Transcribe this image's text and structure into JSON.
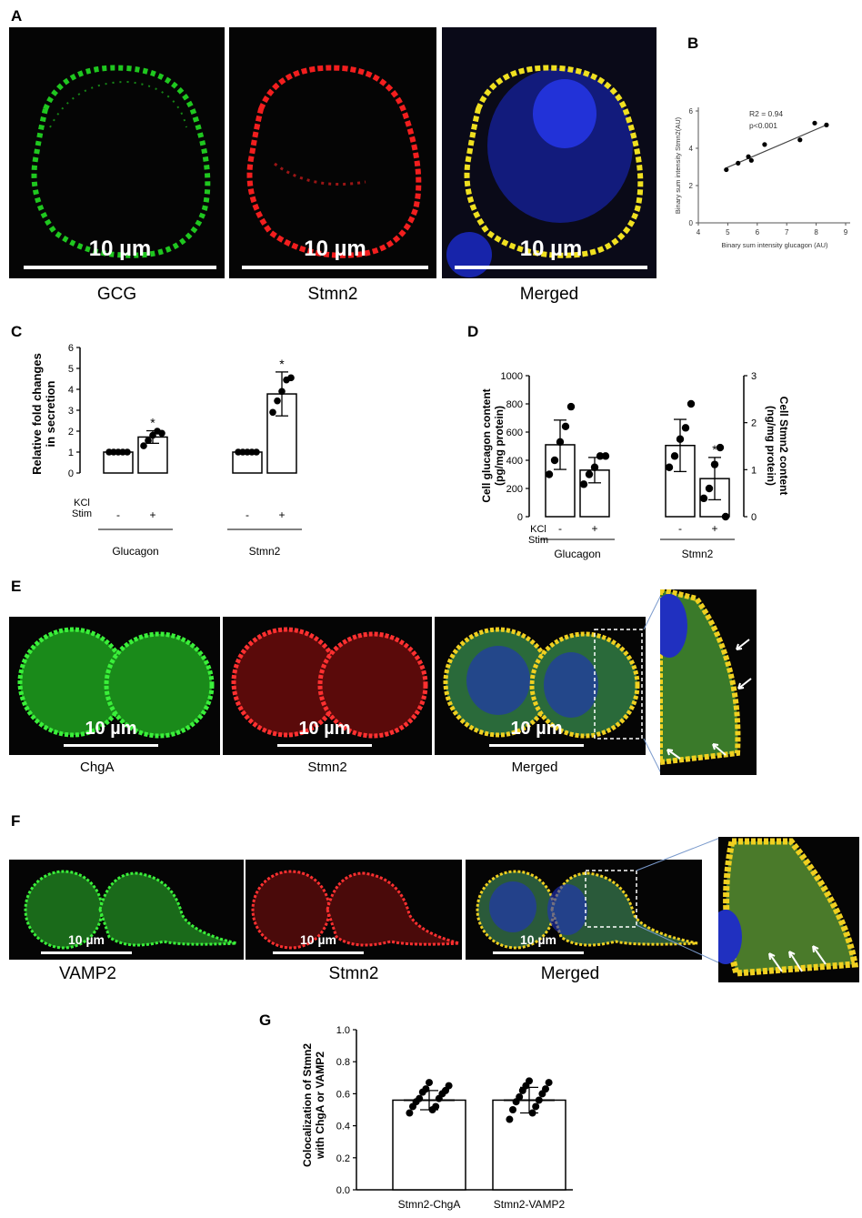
{
  "panel_letters": {
    "a": "A",
    "b": "B",
    "c": "C",
    "d": "D",
    "e": "E",
    "f": "F",
    "g": "G"
  },
  "panel_a": {
    "captions": [
      "GCG",
      "Stmn2",
      "Merged"
    ],
    "scale_label": "10 µm",
    "colors": {
      "gcg": "#22dd22",
      "stmn2": "#ff2020",
      "merged_bg": "#1a2ad0",
      "yellow": "#f0e020"
    }
  },
  "panel_e": {
    "captions": [
      "ChgA",
      "Stmn2",
      "Merged"
    ],
    "scale_label": "10 µm"
  },
  "panel_f": {
    "captions": [
      "VAMP2",
      "Stmn2",
      "Merged"
    ],
    "scale_label": "10 µm"
  },
  "panel_b": {
    "annotation_r2": "R2 = 0.94",
    "annotation_p": "p<0.001",
    "chart_data": {
      "type": "scatter",
      "xlabel": "Binary sum intensity glucagon (AU)",
      "ylabel": "Binary sum intensity Stmn2(AU)",
      "xlim": [
        4,
        9
      ],
      "ylim": [
        0,
        6
      ],
      "xticks": [
        4,
        5,
        6,
        7,
        8,
        9
      ],
      "yticks": [
        0,
        2,
        4,
        6
      ],
      "points": [
        [
          4.95,
          2.85
        ],
        [
          5.35,
          3.2
        ],
        [
          5.7,
          3.55
        ],
        [
          5.8,
          3.35
        ],
        [
          6.25,
          4.2
        ],
        [
          7.45,
          4.45
        ],
        [
          7.95,
          5.35
        ],
        [
          8.35,
          5.25
        ]
      ],
      "fit": [
        [
          4.95,
          2.95
        ],
        [
          8.35,
          5.25
        ]
      ]
    }
  },
  "panel_c": {
    "chart_data": {
      "type": "bar",
      "ylabel": "Relative fold changes in secretion",
      "ylim": [
        0,
        6
      ],
      "yticks": [
        0,
        1,
        2,
        3,
        4,
        5,
        6
      ],
      "row_label": "KCl Stim",
      "groups": [
        "Glucagon",
        "Stmn2"
      ],
      "conditions": [
        "-",
        "+"
      ],
      "values": [
        1.0,
        1.72,
        1.0,
        3.78
      ],
      "errors": [
        0,
        0.3,
        0,
        1.05
      ],
      "stars": [
        "",
        "*",
        "",
        "*"
      ],
      "points": [
        [
          1,
          1,
          1,
          1,
          1
        ],
        [
          1.3,
          1.55,
          1.8,
          2.0,
          1.9
        ],
        [
          1,
          1,
          1,
          1,
          1
        ],
        [
          2.9,
          3.45,
          3.9,
          4.45,
          4.55
        ]
      ]
    }
  },
  "panel_d": {
    "chart_data": {
      "type": "bar",
      "ylabel_left": "Cell glucagon content (pg/mg protein)",
      "ylabel_right": "Cell Stmn2 content (ng/mg protein)",
      "ylim_left": [
        0,
        1000
      ],
      "yticks_left": [
        0,
        200,
        400,
        600,
        800,
        1000
      ],
      "ylim_right": [
        0,
        3
      ],
      "yticks_right": [
        0,
        1,
        2,
        3
      ],
      "row_label": "KCl Stim",
      "groups": [
        "Glucagon",
        "Stmn2"
      ],
      "conditions": [
        "-",
        "+"
      ],
      "values_left": [
        510,
        330,
        505,
        270
      ],
      "errors_left": [
        175,
        90,
        185,
        150
      ],
      "stars": [
        "",
        "",
        "",
        "*"
      ],
      "points_left": [
        [
          300,
          400,
          530,
          640,
          780
        ],
        [
          230,
          300,
          350,
          430,
          430
        ],
        [
          350,
          430,
          550,
          630,
          800
        ],
        [
          130,
          200,
          370,
          490,
          0
        ]
      ]
    }
  },
  "panel_g": {
    "chart_data": {
      "type": "bar",
      "ylabel": "Colocalization of Stmn2 with ChgA or VAMP2",
      "ylim": [
        0,
        1.0
      ],
      "yticks": [
        "0.0",
        "0.2",
        "0.4",
        "0.6",
        "0.8",
        "1.0"
      ],
      "categories": [
        "Stmn2-ChgA",
        "Stmn2-VAMP2"
      ],
      "values": [
        0.56,
        0.56
      ],
      "errors": [
        0.06,
        0.08
      ],
      "points": [
        [
          0.48,
          0.5,
          0.52,
          0.52,
          0.55,
          0.57,
          0.57,
          0.6,
          0.61,
          0.62,
          0.63,
          0.65,
          0.67
        ],
        [
          0.44,
          0.48,
          0.5,
          0.52,
          0.55,
          0.56,
          0.58,
          0.6,
          0.62,
          0.63,
          0.65,
          0.67,
          0.68
        ]
      ]
    }
  }
}
